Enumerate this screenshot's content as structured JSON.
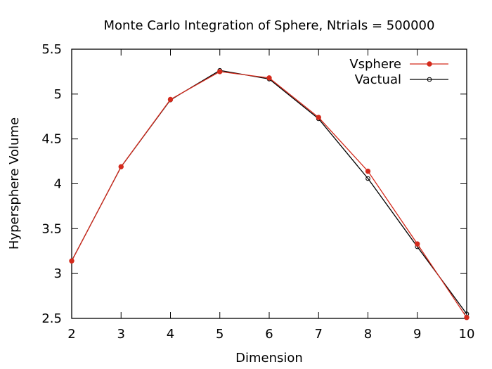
{
  "chart_data": {
    "type": "line",
    "title": "Monte Carlo Integration of Sphere, Ntrials = 500000",
    "xlabel": "Dimension",
    "ylabel": "Hypersphere Volume",
    "xlim": [
      2,
      10
    ],
    "ylim": [
      2.5,
      5.5
    ],
    "xticks": [
      2,
      3,
      4,
      5,
      6,
      7,
      8,
      9,
      10
    ],
    "yticks": [
      2.5,
      3,
      3.5,
      4,
      4.5,
      5,
      5.5
    ],
    "ytick_labels": [
      "2.5",
      "3",
      "3.5",
      "4",
      "4.5",
      "5",
      "5.5"
    ],
    "grid": false,
    "legend_position": "top-right",
    "x": [
      2,
      3,
      4,
      5,
      6,
      7,
      8,
      9,
      10
    ],
    "series": [
      {
        "name": "Vsphere",
        "color": "#d42a1c",
        "marker": "filled-circle",
        "values": [
          3.14,
          4.19,
          4.94,
          5.25,
          5.18,
          4.74,
          4.14,
          3.33,
          2.51
        ]
      },
      {
        "name": "Vactual",
        "color": "#000000",
        "marker": "open-circle",
        "values": [
          3.1416,
          4.1888,
          4.9348,
          5.2638,
          5.1677,
          4.7248,
          4.0587,
          3.2985,
          2.5502
        ]
      }
    ]
  }
}
